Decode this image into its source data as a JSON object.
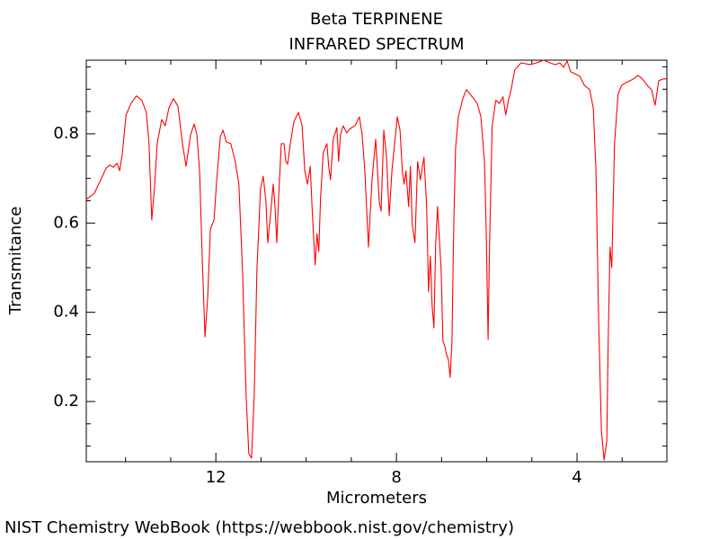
{
  "chart_data": {
    "type": "line",
    "title": "Beta TERPINENE",
    "subtitle": "INFRARED SPECTRUM",
    "xlabel": "Micrometers",
    "ylabel": "Transmitance",
    "footer": "NIST Chemistry WebBook (https://webbook.nist.gov/chemistry)",
    "color": "#ff0000",
    "xlim": [
      14.87,
      2.01
    ],
    "ylim": [
      0.065,
      0.965
    ],
    "xticks": [
      12,
      8,
      4
    ],
    "yticks": [
      0.2,
      0.4,
      0.6,
      0.8
    ],
    "xminorticks": [
      14,
      13,
      11,
      10,
      9,
      7,
      6,
      5,
      3
    ],
    "yminorticks": [
      0.1,
      0.15,
      0.25,
      0.3,
      0.35,
      0.45,
      0.5,
      0.55,
      0.65,
      0.7,
      0.75,
      0.85,
      0.9,
      0.95
    ],
    "x": [
      14.87,
      14.69,
      14.55,
      14.43,
      14.35,
      14.27,
      14.19,
      14.13,
      14.07,
      13.99,
      13.88,
      13.76,
      13.64,
      13.54,
      13.48,
      13.42,
      13.36,
      13.3,
      13.2,
      13.12,
      13.04,
      12.94,
      12.84,
      12.74,
      12.66,
      12.56,
      12.48,
      12.42,
      12.36,
      12.3,
      12.24,
      12.18,
      12.12,
      12.04,
      11.98,
      11.9,
      11.84,
      11.77,
      11.67,
      11.57,
      11.49,
      11.41,
      11.33,
      11.27,
      11.21,
      11.15,
      11.09,
      11.01,
      10.95,
      10.89,
      10.85,
      10.79,
      10.73,
      10.69,
      10.65,
      10.61,
      10.55,
      10.49,
      10.45,
      10.41,
      10.35,
      10.27,
      10.17,
      10.09,
      10.03,
      9.97,
      9.91,
      9.86,
      9.8,
      9.76,
      9.72,
      9.68,
      9.62,
      9.54,
      9.5,
      9.46,
      9.4,
      9.32,
      9.28,
      9.24,
      9.18,
      9.1,
      9.02,
      8.92,
      8.82,
      8.76,
      8.7,
      8.62,
      8.54,
      8.46,
      8.38,
      8.34,
      8.28,
      8.22,
      8.16,
      8.1,
      8.04,
      7.98,
      7.92,
      7.87,
      7.83,
      7.79,
      7.73,
      7.69,
      7.65,
      7.59,
      7.53,
      7.47,
      7.39,
      7.33,
      7.29,
      7.25,
      7.21,
      7.17,
      7.13,
      7.09,
      7.05,
      7.01,
      6.97,
      6.93,
      6.89,
      6.85,
      6.81,
      6.77,
      6.73,
      6.69,
      6.63,
      6.53,
      6.45,
      6.37,
      6.29,
      6.21,
      6.13,
      6.05,
      6.01,
      5.97,
      5.94,
      5.88,
      5.8,
      5.72,
      5.64,
      5.58,
      5.52,
      5.46,
      5.38,
      5.24,
      5.04,
      4.9,
      4.74,
      4.6,
      4.48,
      4.38,
      4.3,
      4.22,
      4.14,
      3.94,
      3.84,
      3.72,
      3.64,
      3.58,
      3.52,
      3.46,
      3.4,
      3.34,
      3.31,
      3.27,
      3.23,
      3.17,
      3.09,
      3.01,
      2.91,
      2.75,
      2.65,
      2.55,
      2.45,
      2.35,
      2.27,
      2.19,
      2.09,
      2.01
    ],
    "values": [
      0.653,
      0.667,
      0.697,
      0.723,
      0.73,
      0.725,
      0.734,
      0.717,
      0.757,
      0.842,
      0.868,
      0.885,
      0.875,
      0.848,
      0.778,
      0.607,
      0.677,
      0.778,
      0.832,
      0.818,
      0.858,
      0.879,
      0.862,
      0.778,
      0.727,
      0.798,
      0.822,
      0.798,
      0.717,
      0.516,
      0.345,
      0.435,
      0.587,
      0.607,
      0.697,
      0.794,
      0.808,
      0.782,
      0.778,
      0.738,
      0.687,
      0.496,
      0.214,
      0.083,
      0.073,
      0.214,
      0.496,
      0.677,
      0.705,
      0.647,
      0.556,
      0.617,
      0.687,
      0.637,
      0.556,
      0.657,
      0.778,
      0.778,
      0.738,
      0.732,
      0.778,
      0.828,
      0.848,
      0.818,
      0.717,
      0.687,
      0.727,
      0.617,
      0.506,
      0.576,
      0.536,
      0.657,
      0.758,
      0.778,
      0.727,
      0.697,
      0.788,
      0.814,
      0.738,
      0.798,
      0.818,
      0.802,
      0.812,
      0.818,
      0.838,
      0.798,
      0.717,
      0.546,
      0.697,
      0.788,
      0.647,
      0.627,
      0.808,
      0.748,
      0.617,
      0.717,
      0.778,
      0.838,
      0.808,
      0.717,
      0.687,
      0.717,
      0.637,
      0.727,
      0.597,
      0.556,
      0.738,
      0.697,
      0.748,
      0.637,
      0.446,
      0.526,
      0.415,
      0.365,
      0.556,
      0.637,
      0.566,
      0.496,
      0.335,
      0.325,
      0.305,
      0.294,
      0.254,
      0.335,
      0.597,
      0.768,
      0.838,
      0.879,
      0.899,
      0.889,
      0.879,
      0.868,
      0.838,
      0.738,
      0.576,
      0.339,
      0.536,
      0.818,
      0.875,
      0.868,
      0.883,
      0.842,
      0.875,
      0.899,
      0.943,
      0.959,
      0.955,
      0.959,
      0.965,
      0.959,
      0.955,
      0.959,
      0.949,
      0.963,
      0.939,
      0.929,
      0.909,
      0.899,
      0.858,
      0.717,
      0.375,
      0.133,
      0.069,
      0.113,
      0.335,
      0.546,
      0.5,
      0.778,
      0.889,
      0.909,
      0.915,
      0.923,
      0.931,
      0.923,
      0.909,
      0.899,
      0.864,
      0.919,
      0.923,
      0.923
    ]
  }
}
